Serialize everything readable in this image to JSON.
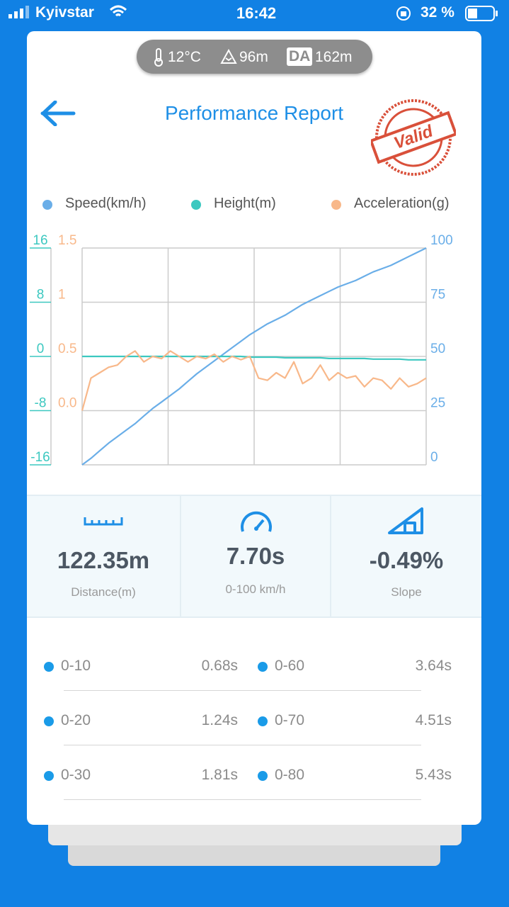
{
  "status_bar": {
    "carrier": "Kyivstar",
    "time": "16:42",
    "battery": "32 %"
  },
  "conditions": {
    "temperature": "12°C",
    "altitude": "96m",
    "da_label": "DA",
    "density_altitude": "162m"
  },
  "header": {
    "title": "Performance Report",
    "stamp": "Valid"
  },
  "chart_data": {
    "type": "line",
    "grid": true,
    "series": [
      {
        "name": "Speed(km/h)",
        "color": "#6aaee8",
        "ylim": [
          0,
          100
        ],
        "yticks": [
          0,
          25,
          50,
          75,
          100
        ],
        "values": [
          0,
          3,
          6.5,
          10,
          13,
          16,
          19,
          22.5,
          26,
          29,
          32,
          35,
          38.5,
          42,
          45,
          48,
          51,
          54,
          57,
          60,
          62.5,
          65,
          67,
          69,
          71.5,
          74,
          76,
          78,
          80,
          82,
          83.5,
          85,
          87,
          89,
          90.5,
          92,
          94,
          96,
          98,
          100
        ]
      },
      {
        "name": "Height(m)",
        "color": "#3cc8c0",
        "ylim": [
          -16,
          16
        ],
        "yticks": [
          -16,
          -8,
          0,
          8,
          16
        ],
        "values": [
          0,
          0,
          0,
          0,
          0,
          0,
          0,
          0,
          0,
          0,
          0,
          0,
          0,
          0,
          0,
          0,
          0,
          0,
          0,
          -0.1,
          -0.1,
          -0.1,
          -0.1,
          -0.2,
          -0.2,
          -0.2,
          -0.2,
          -0.2,
          -0.3,
          -0.3,
          -0.3,
          -0.3,
          -0.3,
          -0.4,
          -0.4,
          -0.4,
          -0.4,
          -0.5,
          -0.5,
          -0.5
        ]
      },
      {
        "name": "Acceleration(g)",
        "color": "#f8b88a",
        "ylim": [
          -0.5,
          1.5
        ],
        "yticks": [
          {
            "value": 0,
            "label": "0.0"
          },
          0.5,
          1,
          1.5
        ],
        "values": [
          0,
          0.3,
          0.35,
          0.4,
          0.42,
          0.5,
          0.55,
          0.45,
          0.5,
          0.48,
          0.55,
          0.5,
          0.45,
          0.5,
          0.48,
          0.52,
          0.45,
          0.5,
          0.47,
          0.5,
          0.3,
          0.28,
          0.35,
          0.3,
          0.45,
          0.25,
          0.3,
          0.42,
          0.28,
          0.35,
          0.3,
          0.32,
          0.22,
          0.3,
          0.28,
          0.2,
          0.3,
          0.22,
          0.25,
          0.3
        ]
      }
    ]
  },
  "stats": [
    {
      "value": "122.35m",
      "label": "Distance(m)"
    },
    {
      "value": "7.70s",
      "label": "0-100 km/h"
    },
    {
      "value": "-0.49%",
      "label": "Slope"
    }
  ],
  "splits": [
    [
      {
        "range": "0-10",
        "time": "0.68s"
      },
      {
        "range": "0-60",
        "time": "3.64s"
      }
    ],
    [
      {
        "range": "0-20",
        "time": "1.24s"
      },
      {
        "range": "0-70",
        "time": "4.51s"
      }
    ],
    [
      {
        "range": "0-30",
        "time": "1.81s"
      },
      {
        "range": "0-80",
        "time": "5.43s"
      }
    ]
  ]
}
